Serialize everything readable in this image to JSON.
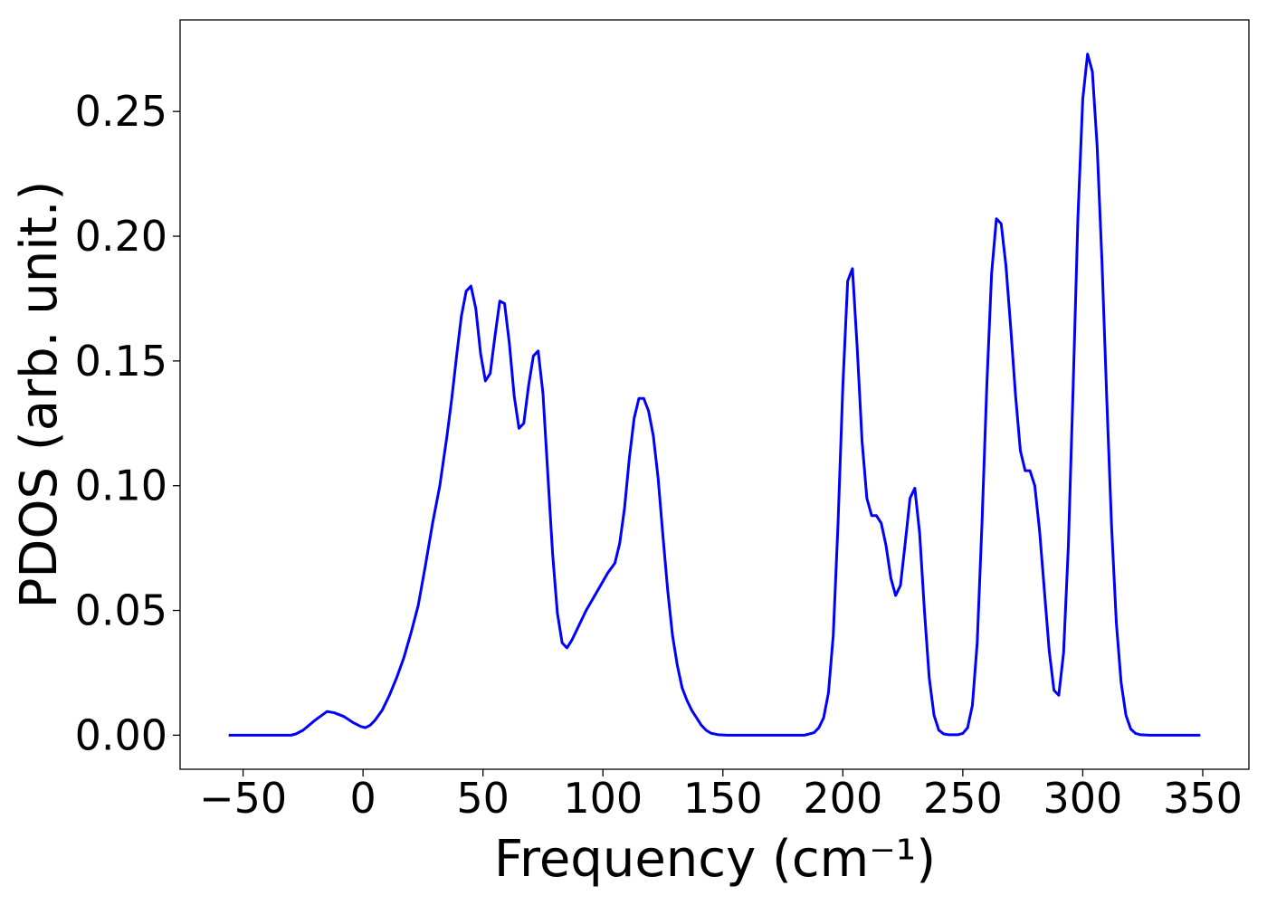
{
  "chart_data": {
    "type": "line",
    "xlabel": "Frequency (cm⁻¹)",
    "ylabel": "PDOS (arb. unit.)",
    "color": "#0000ff",
    "xlim": [
      -76.25,
      369.25
    ],
    "ylim": [
      -0.01365,
      0.2867
    ],
    "xticks": [
      {
        "value": -50,
        "label": "−50"
      },
      0,
      50,
      100,
      150,
      200,
      250,
      300,
      350
    ],
    "yticks": [
      {
        "value": 0,
        "label": "0.00"
      },
      {
        "value": 0.05,
        "label": "0.05"
      },
      {
        "value": 0.1,
        "label": "0.10"
      },
      {
        "value": 0.15,
        "label": "0.15"
      },
      {
        "value": 0.2,
        "label": "0.20"
      },
      {
        "value": 0.25,
        "label": "0.25"
      }
    ],
    "x": [
      -56,
      -30,
      -28,
      -25,
      -20,
      -15,
      -12,
      -8,
      -4,
      -1,
      1,
      3,
      5,
      8,
      11,
      14,
      17,
      20,
      23,
      26,
      29,
      32,
      35,
      37,
      39,
      41,
      43,
      45,
      47,
      49,
      51,
      53,
      55,
      57,
      59,
      61,
      63,
      65,
      67,
      69,
      71,
      73,
      75,
      77,
      79,
      81,
      83,
      85,
      87,
      90,
      93,
      96,
      99,
      102,
      105,
      107,
      109,
      111,
      113,
      115,
      117,
      119,
      121,
      123,
      125,
      127,
      129,
      131,
      133,
      135,
      137,
      139,
      141,
      143,
      145,
      148,
      152,
      184,
      186,
      188,
      190,
      192,
      194,
      196,
      198,
      200,
      202,
      204,
      206,
      208,
      210,
      212,
      214,
      216,
      218,
      220,
      222,
      224,
      226,
      228,
      230,
      232,
      234,
      236,
      238,
      240,
      242,
      244,
      248,
      250,
      252,
      254,
      256,
      258,
      260,
      262,
      264,
      266,
      268,
      270,
      272,
      274,
      276,
      278,
      280,
      282,
      284,
      286,
      288,
      290,
      292,
      294,
      296,
      298,
      300,
      302,
      304,
      306,
      308,
      310,
      312,
      314,
      316,
      318,
      320,
      322,
      324,
      328,
      349
    ],
    "values": [
      0,
      0,
      0.0005,
      0.002,
      0.006,
      0.0095,
      0.009,
      0.0075,
      0.005,
      0.0035,
      0.003,
      0.004,
      0.006,
      0.01,
      0.016,
      0.023,
      0.031,
      0.041,
      0.052,
      0.068,
      0.085,
      0.1,
      0.12,
      0.135,
      0.152,
      0.168,
      0.178,
      0.18,
      0.171,
      0.153,
      0.142,
      0.145,
      0.16,
      0.174,
      0.173,
      0.157,
      0.136,
      0.123,
      0.125,
      0.14,
      0.152,
      0.154,
      0.137,
      0.105,
      0.073,
      0.049,
      0.037,
      0.035,
      0.038,
      0.044,
      0.05,
      0.055,
      0.06,
      0.065,
      0.069,
      0.077,
      0.091,
      0.111,
      0.127,
      0.135,
      0.135,
      0.13,
      0.12,
      0.103,
      0.08,
      0.058,
      0.04,
      0.028,
      0.019,
      0.014,
      0.01,
      0.007,
      0.004,
      0.002,
      0.0008,
      0.0002,
      0,
      0,
      0.0005,
      0.001,
      0.003,
      0.007,
      0.017,
      0.04,
      0.085,
      0.14,
      0.182,
      0.187,
      0.155,
      0.118,
      0.095,
      0.088,
      0.088,
      0.085,
      0.076,
      0.063,
      0.056,
      0.06,
      0.077,
      0.095,
      0.099,
      0.081,
      0.05,
      0.023,
      0.008,
      0.002,
      0.0005,
      0.0002,
      0.0002,
      0.0007,
      0.003,
      0.012,
      0.037,
      0.085,
      0.14,
      0.185,
      0.207,
      0.205,
      0.188,
      0.163,
      0.136,
      0.114,
      0.106,
      0.106,
      0.1,
      0.082,
      0.058,
      0.034,
      0.018,
      0.016,
      0.033,
      0.076,
      0.14,
      0.208,
      0.255,
      0.273,
      0.266,
      0.236,
      0.19,
      0.135,
      0.084,
      0.045,
      0.021,
      0.008,
      0.0025,
      0.0007,
      0.0002,
      0,
      0
    ]
  }
}
